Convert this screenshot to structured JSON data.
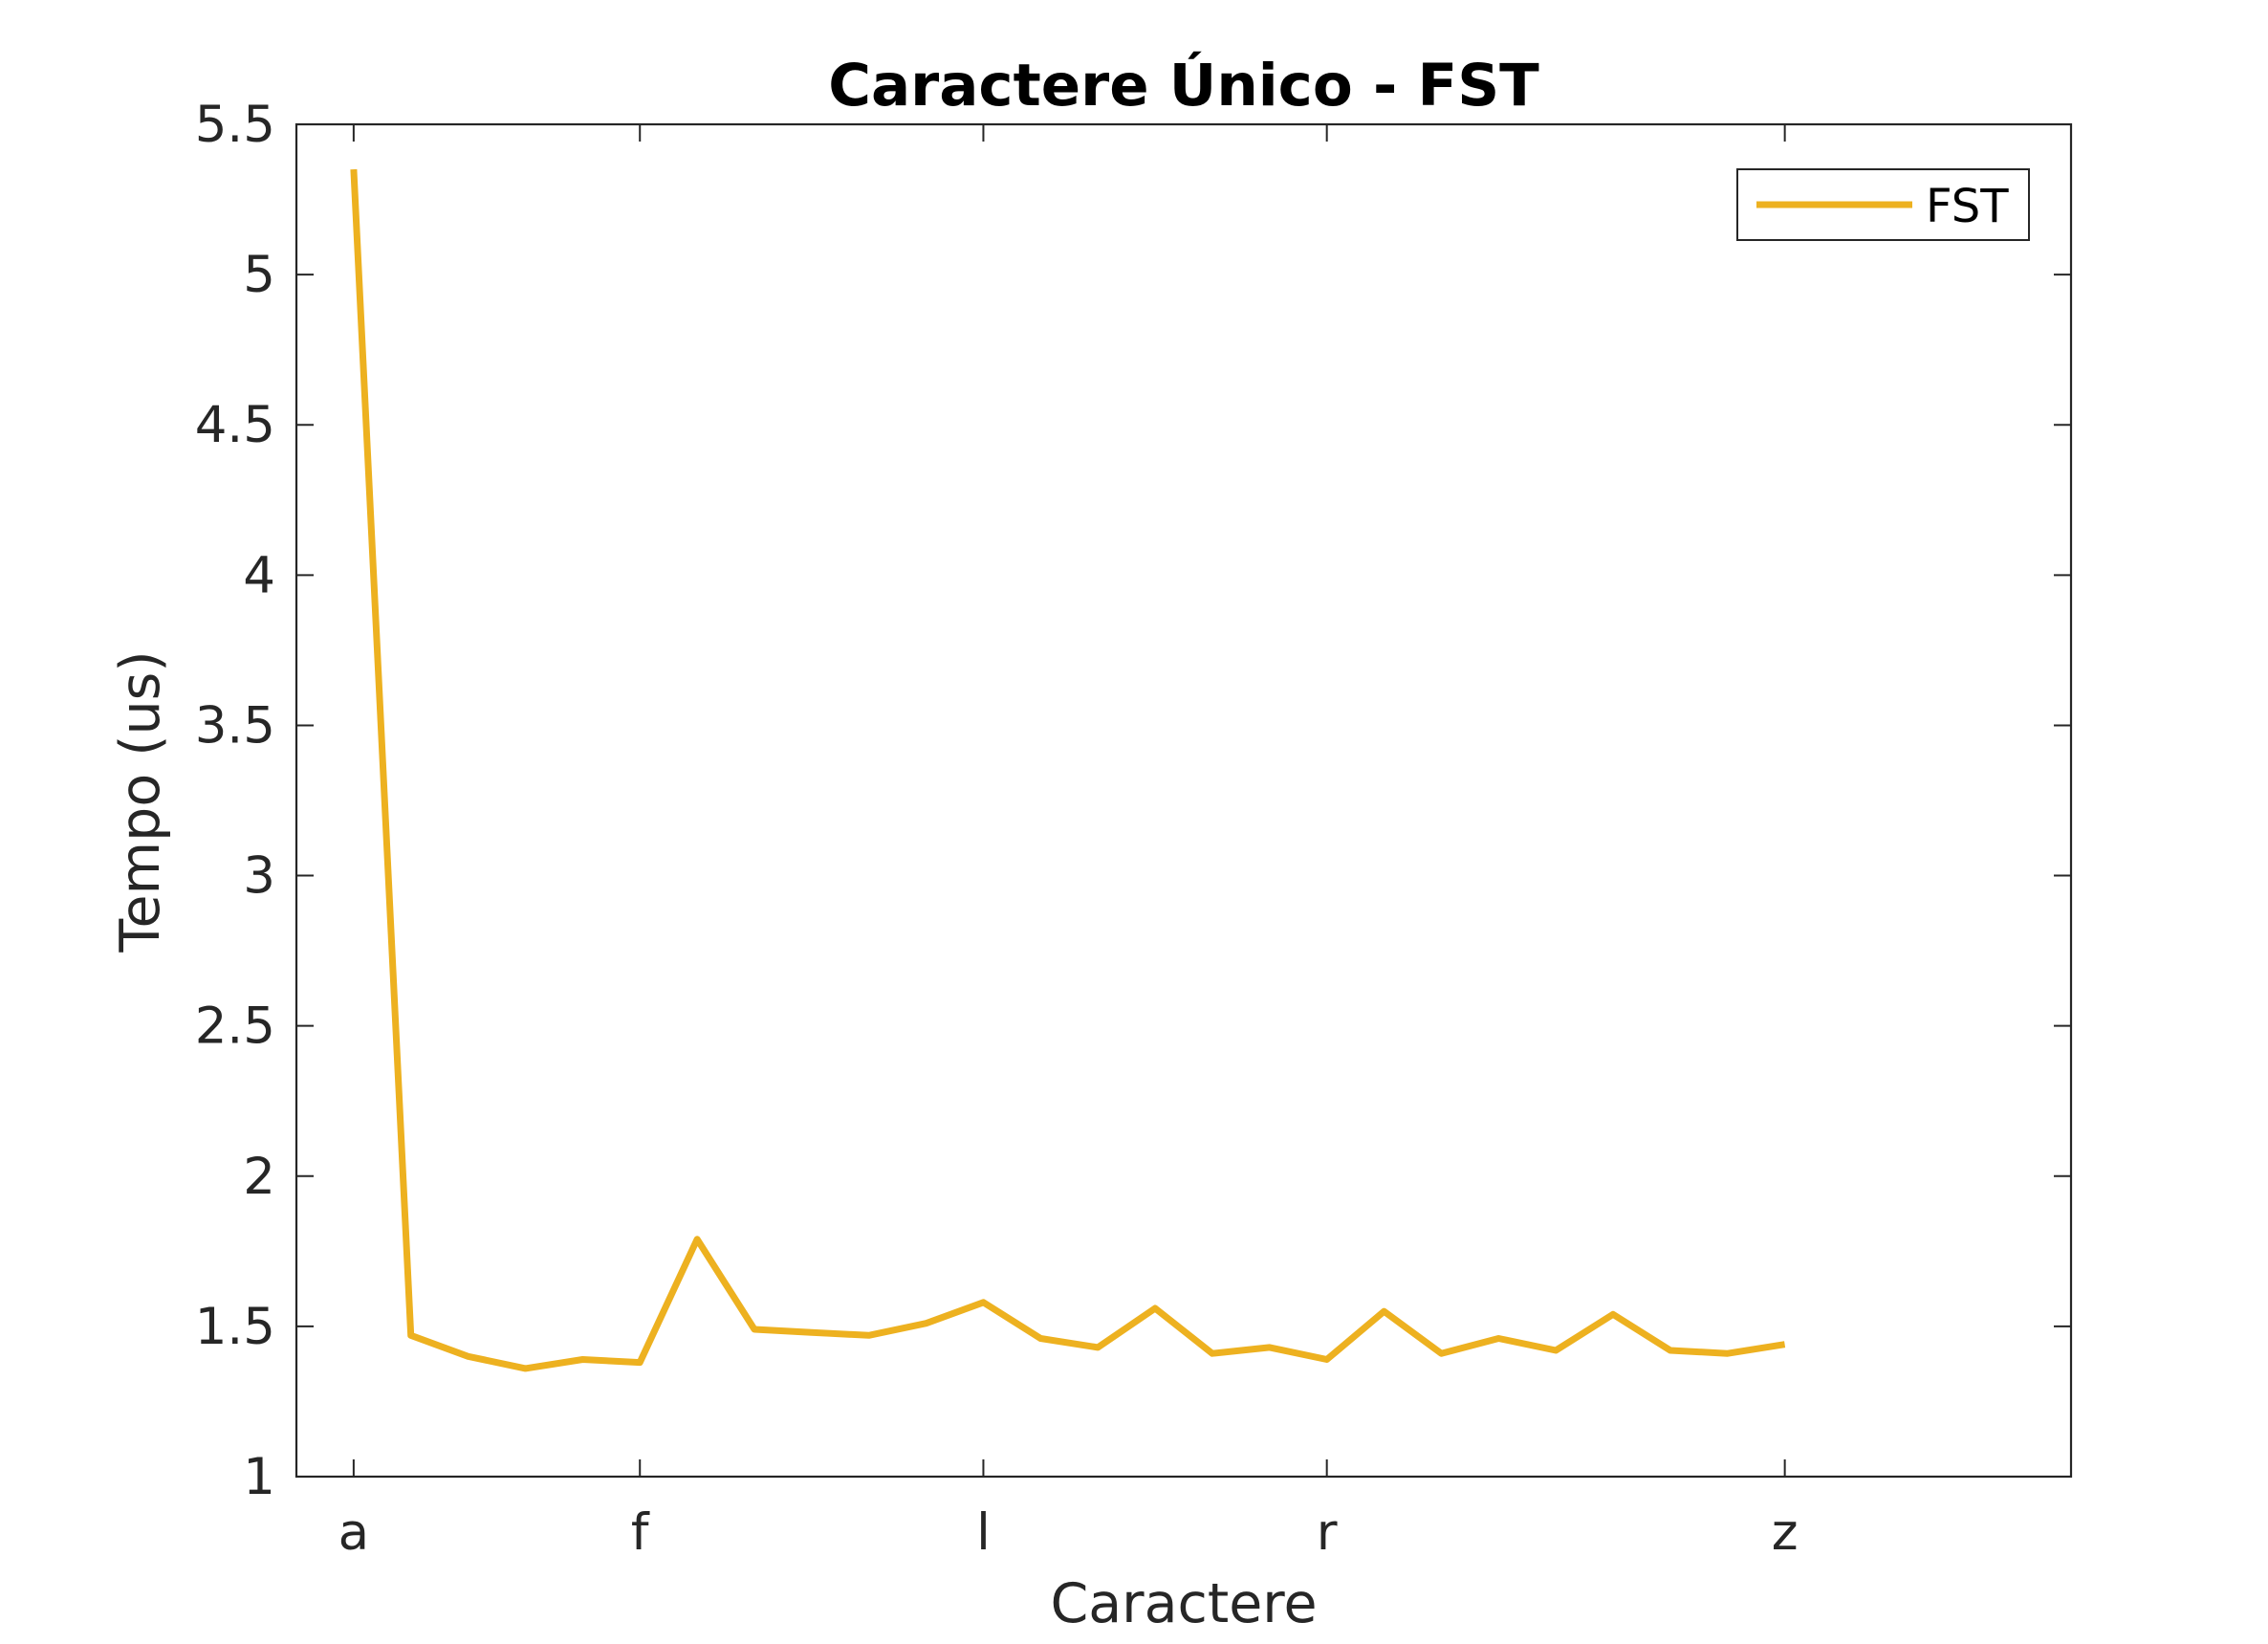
{
  "chart_data": {
    "type": "line",
    "title": "Caractere Único - FST",
    "xlabel": "Caractere",
    "ylabel": "Tempo (us)",
    "x_tick_labels": [
      {
        "label": "a",
        "index": 1
      },
      {
        "label": "f",
        "index": 6
      },
      {
        "label": "l",
        "index": 12
      },
      {
        "label": "r",
        "index": 18
      },
      {
        "label": "z",
        "index": 26
      }
    ],
    "xlim": [
      0,
      31
    ],
    "ylim": [
      1,
      5.5
    ],
    "y_ticks": [
      1,
      1.5,
      2,
      2.5,
      3,
      3.5,
      4,
      4.5,
      5,
      5.5
    ],
    "y_tick_labels": [
      "1",
      "1.5",
      "2",
      "2.5",
      "3",
      "3.5",
      "4",
      "4.5",
      "5",
      "5.5"
    ],
    "grid": false,
    "legend": {
      "position": "top-right",
      "entries": [
        "FST"
      ]
    },
    "series": [
      {
        "name": "FST",
        "color": "#EDB120",
        "x": [
          1,
          2,
          3,
          4,
          5,
          6,
          7,
          8,
          9,
          10,
          11,
          12,
          13,
          14,
          15,
          16,
          17,
          18,
          19,
          20,
          21,
          22,
          23,
          24,
          25,
          26
        ],
        "values": [
          5.35,
          1.47,
          1.4,
          1.36,
          1.39,
          1.38,
          1.79,
          1.49,
          1.48,
          1.47,
          1.51,
          1.58,
          1.46,
          1.43,
          1.56,
          1.41,
          1.43,
          1.39,
          1.55,
          1.41,
          1.46,
          1.42,
          1.54,
          1.42,
          1.41,
          1.44
        ]
      }
    ]
  }
}
